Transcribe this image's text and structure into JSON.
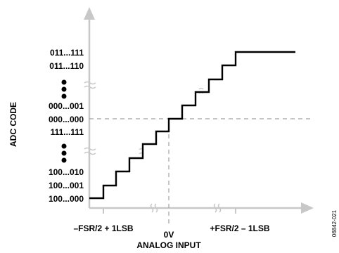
{
  "y_axis": {
    "title": "ADC CODE",
    "codes": [
      "011...111",
      "011...110",
      "000...001",
      "000...000",
      "111...111",
      "100...010",
      "100...001",
      "100...000"
    ]
  },
  "x_axis": {
    "title": "ANALOG INPUT",
    "labels": [
      "–FSR/2 + 1LSB",
      "0V",
      "+FSR/2 – 1LSB"
    ]
  },
  "figure_id": "06842-021",
  "colors": {
    "axis": "#c8c8c8",
    "staircase": "#000000",
    "text": "#000000"
  }
}
